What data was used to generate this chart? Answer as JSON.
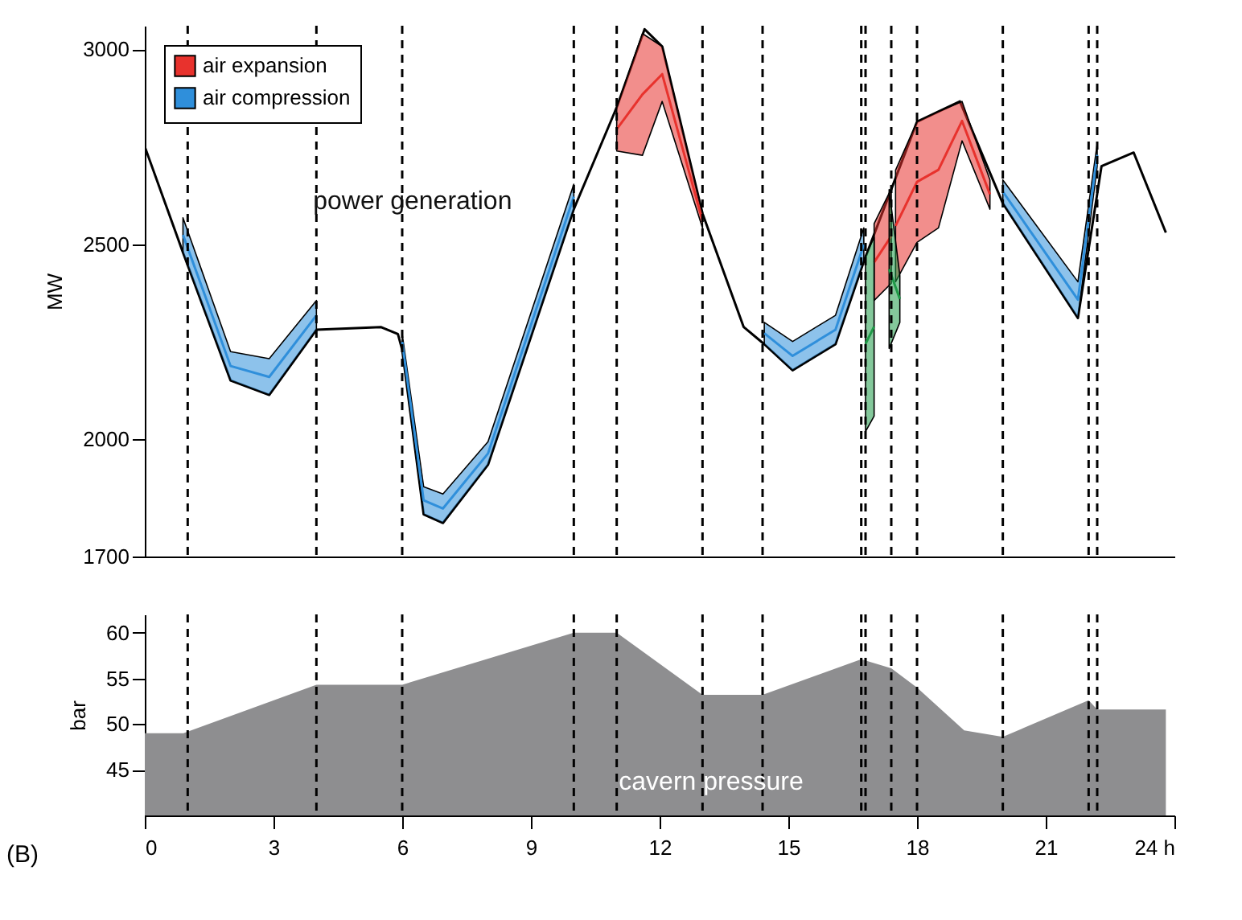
{
  "chart_data": [
    {
      "type": "line",
      "ylabel": "MW",
      "xlim": [
        0,
        24
      ],
      "ylim": [
        1700,
        3060
      ],
      "yticks": [
        1700,
        2000,
        2500,
        3000
      ],
      "tick_labels": "y",
      "legend": "top left",
      "series": [
        {
          "color": "#000000",
          "x": [
            0,
            0.89,
            2.0,
            2.9,
            4.0,
            5.5,
            5.9,
            6.0,
            6.5,
            6.95,
            8.0,
            10.0,
            11.0,
            11.65,
            12.06,
            13.0,
            13.96,
            14.44,
            15.1,
            16.1,
            16.76,
            18.0,
            19.0,
            20.0,
            21.75,
            22.3,
            23.05,
            23.8
          ],
          "values": [
            2750,
            2479,
            2151,
            2114,
            2281,
            2288,
            2270,
            2230,
            1808,
            1786,
            1935,
            2590,
            2851,
            3051,
            3007,
            2579,
            2288,
            2244,
            2177,
            2244,
            2456,
            2814,
            2866,
            2605,
            2311,
            2700,
            2735,
            2530
          ]
        },
        {
          "name": "air expansion",
          "color": "#e8322d",
          "x": [
            11.0,
            11.6,
            12.06,
            13.0
          ],
          "values": [
            2795,
            2884,
            2936,
            2560
          ],
          "lower": [
            2739,
            2728,
            2866,
            2542
          ],
          "upper": [
            2851,
            3040,
            3007,
            2579
          ]
        },
        {
          "color": "#e8322d",
          "x": [
            17.0,
            17.4
          ],
          "values": [
            2454,
            2521
          ],
          "lower": [
            2356,
            2400
          ],
          "upper": [
            2553,
            2642
          ]
        },
        {
          "color": "#e8322d",
          "x": [
            17.5,
            18.0,
            18.5,
            19.05,
            19.7
          ],
          "values": [
            2547,
            2660,
            2691,
            2816,
            2628
          ],
          "lower": [
            2404,
            2505,
            2542,
            2765,
            2590
          ],
          "upper": [
            2690,
            2814,
            2840,
            2866,
            2665
          ]
        },
        {
          "name": "air compression",
          "color": "#2f8fdb",
          "x": [
            0.89,
            2.0,
            2.9,
            4.0
          ],
          "values": [
            2524,
            2188,
            2160,
            2318
          ],
          "lower": [
            2479,
            2151,
            2114,
            2281
          ],
          "upper": [
            2568,
            2225,
            2207,
            2356
          ]
        },
        {
          "color": "#2f8fdb",
          "x": [
            6.0,
            6.5,
            6.95,
            8.0,
            10.0
          ],
          "values": [
            2250,
            1844,
            1823,
            1964,
            2622
          ],
          "lower": [
            2230,
            1808,
            1786,
            1935,
            2590
          ],
          "upper": [
            2270,
            1879,
            1860,
            1994,
            2654
          ]
        },
        {
          "color": "#2f8fdb",
          "x": [
            14.44,
            15.1,
            16.1,
            16.76
          ],
          "values": [
            2272,
            2214,
            2281,
            2499
          ],
          "lower": [
            2244,
            2177,
            2244,
            2456
          ],
          "upper": [
            2300,
            2251,
            2318,
            2542
          ]
        },
        {
          "color": "#2f8fdb",
          "x": [
            20.0,
            21.75,
            22.2
          ],
          "values": [
            2635,
            2358,
            2729
          ],
          "lower": [
            2605,
            2311,
            2700
          ],
          "upper": [
            2665,
            2404,
            2758
          ]
        },
        {
          "color": "#1f9a48",
          "x": [
            16.8,
            17.0
          ],
          "values": [
            2245,
            2289
          ],
          "lower": [
            2020,
            2060
          ],
          "upper": [
            2470,
            2518
          ]
        },
        {
          "color": "#1f9a48",
          "x": [
            17.35,
            17.6
          ],
          "values": [
            2436,
            2360
          ],
          "lower": [
            2233,
            2300
          ],
          "upper": [
            2640,
            2420
          ]
        }
      ],
      "ref_lines": [
        {
          "axis": "x",
          "value": 1,
          "line_style": "dashed"
        },
        {
          "axis": "x",
          "value": 4,
          "line_style": "dashed"
        },
        {
          "axis": "x",
          "value": 6,
          "line_style": "dashed"
        },
        {
          "axis": "x",
          "value": 10,
          "line_style": "dashed"
        },
        {
          "axis": "x",
          "value": 11,
          "line_style": "dashed"
        },
        {
          "axis": "x",
          "value": 13,
          "line_style": "dashed"
        },
        {
          "axis": "x",
          "value": 14.4,
          "line_style": "dashed"
        },
        {
          "axis": "x",
          "value": 16.7,
          "line_style": "dashed"
        },
        {
          "axis": "x",
          "value": 16.8,
          "line_style": "dashed"
        },
        {
          "axis": "x",
          "value": 17.4,
          "line_style": "dashed"
        },
        {
          "axis": "x",
          "value": 18,
          "line_style": "dashed"
        },
        {
          "axis": "x",
          "value": 20,
          "line_style": "dashed"
        },
        {
          "axis": "x",
          "value": 22,
          "line_style": "dashed"
        },
        {
          "axis": "x",
          "value": 22.2,
          "line_style": "dashed"
        }
      ],
      "annotations": [
        "power generation"
      ]
    },
    {
      "type": "area",
      "ylabel": "bar",
      "xlim": [
        0,
        24
      ],
      "ylim": [
        40,
        62
      ],
      "yticks": [
        45,
        50,
        55,
        60
      ],
      "xticks": [
        0,
        3,
        6,
        9,
        12,
        15,
        18,
        21,
        {
          "value": 24,
          "label": "24 h"
        }
      ],
      "color": "#8e8e90",
      "x": [
        0,
        0.9,
        4.0,
        6.0,
        10.0,
        11.0,
        13.0,
        14.4,
        16.7,
        17.4,
        18.0,
        19.1,
        20.0,
        22.0,
        22.2,
        23.8
      ],
      "values": [
        49,
        49,
        54.3,
        54.3,
        60,
        60,
        53.2,
        53.2,
        57.1,
        56.1,
        54,
        49.3,
        48.6,
        52.6,
        51.6,
        51.6
      ],
      "ref_lines": [
        {
          "axis": "x",
          "value": 1,
          "line_style": "dashed"
        },
        {
          "axis": "x",
          "value": 4,
          "line_style": "dashed"
        },
        {
          "axis": "x",
          "value": 6,
          "line_style": "dashed"
        },
        {
          "axis": "x",
          "value": 10,
          "line_style": "dashed"
        },
        {
          "axis": "x",
          "value": 11,
          "line_style": "dashed"
        },
        {
          "axis": "x",
          "value": 13,
          "line_style": "dashed"
        },
        {
          "axis": "x",
          "value": 14.4,
          "line_style": "dashed"
        },
        {
          "axis": "x",
          "value": 16.7,
          "line_style": "dashed"
        },
        {
          "axis": "x",
          "value": 16.8,
          "line_style": "dashed"
        },
        {
          "axis": "x",
          "value": 17.4,
          "line_style": "dashed"
        },
        {
          "axis": "x",
          "value": 18,
          "line_style": "dashed"
        },
        {
          "axis": "x",
          "value": 20,
          "line_style": "dashed"
        },
        {
          "axis": "x",
          "value": 22,
          "line_style": "dashed"
        },
        {
          "axis": "x",
          "value": 22.2,
          "line_style": "dashed"
        }
      ],
      "annotations": [
        "cavern pressure",
        "(B)"
      ]
    }
  ]
}
